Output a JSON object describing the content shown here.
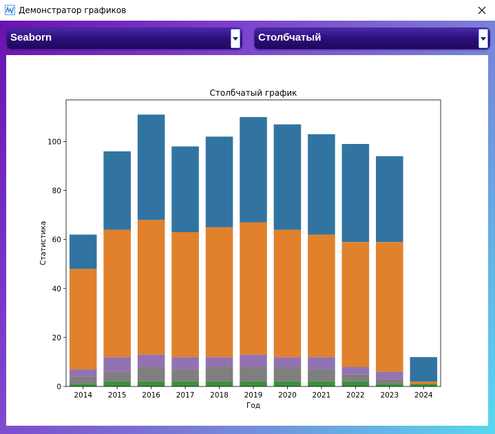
{
  "window": {
    "title": "Демонстратор графиков"
  },
  "controls": {
    "library": {
      "value": "Seaborn"
    },
    "chart_type": {
      "value": "Столбчатый"
    }
  },
  "colors": {
    "blue": "#3274a1",
    "orange": "#e1812c",
    "purple": "#9372b2",
    "gray": "#7f7f7f",
    "green": "#3a923a",
    "brown": "#845b53",
    "red": "#c03d3e"
  },
  "chart_data": {
    "type": "bar",
    "stacked": true,
    "title": "Столбчатый график",
    "xlabel": "Год",
    "ylabel": "Статистика",
    "ylim": [
      0,
      117
    ],
    "yticks": [
      0,
      20,
      40,
      60,
      80,
      100
    ],
    "categories": [
      "2014",
      "2015",
      "2016",
      "2017",
      "2018",
      "2019",
      "2020",
      "2021",
      "2022",
      "2023",
      "2024"
    ],
    "series": [
      {
        "color": "#3274a1",
        "values": [
          14,
          32,
          43,
          35,
          37,
          43,
          43,
          41,
          40,
          35,
          10
        ]
      },
      {
        "color": "#e1812c",
        "values": [
          41,
          52,
          55,
          51,
          53,
          54,
          52,
          50,
          51,
          53,
          1
        ]
      },
      {
        "color": "#9372b2",
        "values": [
          3,
          6,
          5,
          5,
          4,
          5,
          4,
          5,
          3,
          3,
          0
        ]
      },
      {
        "color": "#7f7f7f",
        "values": [
          3,
          4,
          6,
          5,
          6,
          6,
          6,
          5,
          3,
          2,
          0
        ]
      },
      {
        "color": "#3a923a",
        "values": [
          1,
          2,
          2,
          2,
          2,
          2,
          2,
          2,
          2,
          1,
          1
        ]
      }
    ]
  }
}
